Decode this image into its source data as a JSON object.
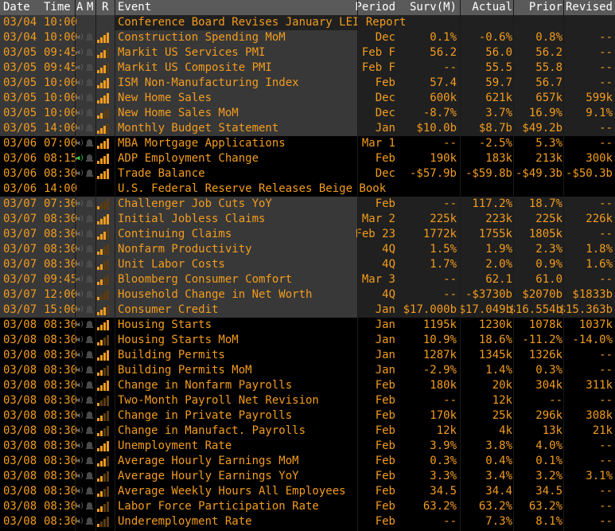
{
  "header": {
    "date": "Date",
    "time": "Time",
    "am": "A",
    "m": "M",
    "r": "R",
    "event": "Event",
    "period": "Period",
    "surv": "Surv(M)",
    "actual": "Actual",
    "prior": "Prior",
    "revised": "Revised"
  },
  "rows": [
    {
      "date": "03/04",
      "time": "10:00",
      "event": "Conference Board Revises January LEI Report",
      "period": "",
      "surv": "",
      "actual": "",
      "prior": "",
      "revised": "",
      "rel": 0,
      "icons": false
    },
    {
      "date": "03/04",
      "time": "10:00",
      "event": "Construction Spending MoM",
      "period": "Dec",
      "surv": "0.1%",
      "actual": "-0.6%",
      "prior": "0.8%",
      "revised": "--",
      "rel": 4,
      "icons": true
    },
    {
      "date": "03/05",
      "time": "09:45",
      "event": "Markit US Services PMI",
      "period": "Feb F",
      "surv": "56.2",
      "actual": "56.0",
      "prior": "56.2",
      "revised": "--",
      "rel": 3,
      "icons": true
    },
    {
      "date": "03/05",
      "time": "09:45",
      "event": "Markit US Composite PMI",
      "period": "Feb F",
      "surv": "--",
      "actual": "55.5",
      "prior": "55.8",
      "revised": "--",
      "rel": 3,
      "icons": true
    },
    {
      "date": "03/05",
      "time": "10:00",
      "event": "ISM Non-Manufacturing Index",
      "period": "Feb",
      "surv": "57.4",
      "actual": "59.7",
      "prior": "56.7",
      "revised": "--",
      "rel": 4,
      "icons": true
    },
    {
      "date": "03/05",
      "time": "10:00",
      "event": "New Home Sales",
      "period": "Dec",
      "surv": "600k",
      "actual": "621k",
      "prior": "657k",
      "revised": "599k",
      "rel": 4,
      "icons": true
    },
    {
      "date": "03/05",
      "time": "10:00",
      "event": "New Home Sales MoM",
      "period": "Dec",
      "surv": "-8.7%",
      "actual": "3.7%",
      "prior": "16.9%",
      "revised": "9.1%",
      "rel": 2,
      "icons": true
    },
    {
      "date": "03/05",
      "time": "14:00",
      "event": "Monthly Budget Statement",
      "period": "Jan",
      "surv": "$10.0b",
      "actual": "$8.7b",
      "prior": "$49.2b",
      "revised": "--",
      "rel": 3,
      "icons": true
    },
    {
      "date": "03/06",
      "time": "07:00",
      "event": "MBA Mortgage Applications",
      "period": "Mar 1",
      "surv": "--",
      "actual": "-2.5%",
      "prior": "5.3%",
      "revised": "--",
      "rel": 4,
      "icons": true
    },
    {
      "date": "03/06",
      "time": "08:15",
      "event": "ADP Employment Change",
      "period": "Feb",
      "surv": "190k",
      "actual": "183k",
      "prior": "213k",
      "revised": "300k",
      "rel": 4,
      "icons": true,
      "green": true
    },
    {
      "date": "03/06",
      "time": "08:30",
      "event": "Trade Balance",
      "period": "Dec",
      "surv": "-$57.9b",
      "actual": "-$59.8b",
      "prior": "-$49.3b",
      "revised": "-$50.3b",
      "rel": 4,
      "icons": true
    },
    {
      "date": "03/06",
      "time": "14:00",
      "event": "U.S. Federal Reserve Releases Beige Book",
      "period": "",
      "surv": "",
      "actual": "",
      "prior": "",
      "revised": "",
      "rel": 0,
      "icons": false
    },
    {
      "date": "03/07",
      "time": "07:30",
      "event": "Challenger Job Cuts YoY",
      "period": "Feb",
      "surv": "--",
      "actual": "117.2%",
      "prior": "18.7%",
      "revised": "--",
      "rel": 1,
      "icons": true
    },
    {
      "date": "03/07",
      "time": "08:30",
      "event": "Initial Jobless Claims",
      "period": "Mar 2",
      "surv": "225k",
      "actual": "223k",
      "prior": "225k",
      "revised": "226k",
      "rel": 4,
      "icons": true
    },
    {
      "date": "03/07",
      "time": "08:30",
      "event": "Continuing Claims",
      "period": "Feb 23",
      "surv": "1772k",
      "actual": "1755k",
      "prior": "1805k",
      "revised": "--",
      "rel": 3,
      "icons": true
    },
    {
      "date": "03/07",
      "time": "08:30",
      "event": "Nonfarm Productivity",
      "period": "4Q",
      "surv": "1.5%",
      "actual": "1.9%",
      "prior": "2.3%",
      "revised": "1.8%",
      "rel": 2,
      "icons": true
    },
    {
      "date": "03/07",
      "time": "08:30",
      "event": "Unit Labor Costs",
      "period": "4Q",
      "surv": "1.7%",
      "actual": "2.0%",
      "prior": "0.9%",
      "revised": "1.6%",
      "rel": 2,
      "icons": true
    },
    {
      "date": "03/07",
      "time": "09:45",
      "event": "Bloomberg Consumer Comfort",
      "period": "Mar 3",
      "surv": "--",
      "actual": "62.1",
      "prior": "61.0",
      "revised": "--",
      "rel": 2,
      "icons": true
    },
    {
      "date": "03/07",
      "time": "12:00",
      "event": "Household Change in Net Worth",
      "period": "4Q",
      "surv": "--",
      "actual": "-$3730b",
      "prior": "$2070b",
      "revised": "$1833b",
      "rel": 1,
      "icons": true
    },
    {
      "date": "03/07",
      "time": "15:00",
      "event": "Consumer Credit",
      "period": "Jan",
      "surv": "$17.000b",
      "actual": "$17.049b",
      "prior": "$16.554b",
      "revised": "$15.363b",
      "rel": 3,
      "icons": true
    },
    {
      "date": "03/08",
      "time": "08:30",
      "event": "Housing Starts",
      "period": "Jan",
      "surv": "1195k",
      "actual": "1230k",
      "prior": "1078k",
      "revised": "1037k",
      "rel": 4,
      "icons": true
    },
    {
      "date": "03/08",
      "time": "08:30",
      "event": "Housing Starts MoM",
      "period": "Jan",
      "surv": "10.9%",
      "actual": "18.6%",
      "prior": "-11.2%",
      "revised": "-14.0%",
      "rel": 2,
      "icons": true
    },
    {
      "date": "03/08",
      "time": "08:30",
      "event": "Building Permits",
      "period": "Jan",
      "surv": "1287k",
      "actual": "1345k",
      "prior": "1326k",
      "revised": "--",
      "rel": 4,
      "icons": true
    },
    {
      "date": "03/08",
      "time": "08:30",
      "event": "Building Permits MoM",
      "period": "Jan",
      "surv": "-2.9%",
      "actual": "1.4%",
      "prior": "0.3%",
      "revised": "--",
      "rel": 2,
      "icons": true
    },
    {
      "date": "03/08",
      "time": "08:30",
      "event": "Change in Nonfarm Payrolls",
      "period": "Feb",
      "surv": "180k",
      "actual": "20k",
      "prior": "304k",
      "revised": "311k",
      "rel": 4,
      "icons": true
    },
    {
      "date": "03/08",
      "time": "08:30",
      "event": "Two-Month Payroll Net Revision",
      "period": "Feb",
      "surv": "--",
      "actual": "12k",
      "prior": "--",
      "revised": "--",
      "rel": 1,
      "icons": true
    },
    {
      "date": "03/08",
      "time": "08:30",
      "event": "Change in Private Payrolls",
      "period": "Feb",
      "surv": "170k",
      "actual": "25k",
      "prior": "296k",
      "revised": "308k",
      "rel": 2,
      "icons": true
    },
    {
      "date": "03/08",
      "time": "08:30",
      "event": "Change in Manufact. Payrolls",
      "period": "Feb",
      "surv": "12k",
      "actual": "4k",
      "prior": "13k",
      "revised": "21k",
      "rel": 2,
      "icons": true
    },
    {
      "date": "03/08",
      "time": "08:30",
      "event": "Unemployment Rate",
      "period": "Feb",
      "surv": "3.9%",
      "actual": "3.8%",
      "prior": "4.0%",
      "revised": "--",
      "rel": 4,
      "icons": true
    },
    {
      "date": "03/08",
      "time": "08:30",
      "event": "Average Hourly Earnings MoM",
      "period": "Feb",
      "surv": "0.3%",
      "actual": "0.4%",
      "prior": "0.1%",
      "revised": "--",
      "rel": 3,
      "icons": true
    },
    {
      "date": "03/08",
      "time": "08:30",
      "event": "Average Hourly Earnings YoY",
      "period": "Feb",
      "surv": "3.3%",
      "actual": "3.4%",
      "prior": "3.2%",
      "revised": "3.1%",
      "rel": 2,
      "icons": true
    },
    {
      "date": "03/08",
      "time": "08:30",
      "event": "Average Weekly Hours All Employees",
      "period": "Feb",
      "surv": "34.5",
      "actual": "34.4",
      "prior": "34.5",
      "revised": "--",
      "rel": 2,
      "icons": true
    },
    {
      "date": "03/08",
      "time": "08:30",
      "event": "Labor Force Participation Rate",
      "period": "Feb",
      "surv": "63.2%",
      "actual": "63.2%",
      "prior": "63.2%",
      "revised": "--",
      "rel": 2,
      "icons": true
    },
    {
      "date": "03/08",
      "time": "08:30",
      "event": "Underemployment Rate",
      "period": "Feb",
      "surv": "--",
      "actual": "7.3%",
      "prior": "8.1%",
      "revised": "--",
      "rel": 1,
      "icons": true
    }
  ],
  "colors": {
    "text": "#f39c1f",
    "header_bg": "#5a5a5a",
    "shade": "#464646",
    "alt_row": "#202020",
    "green": "#35d04f"
  }
}
